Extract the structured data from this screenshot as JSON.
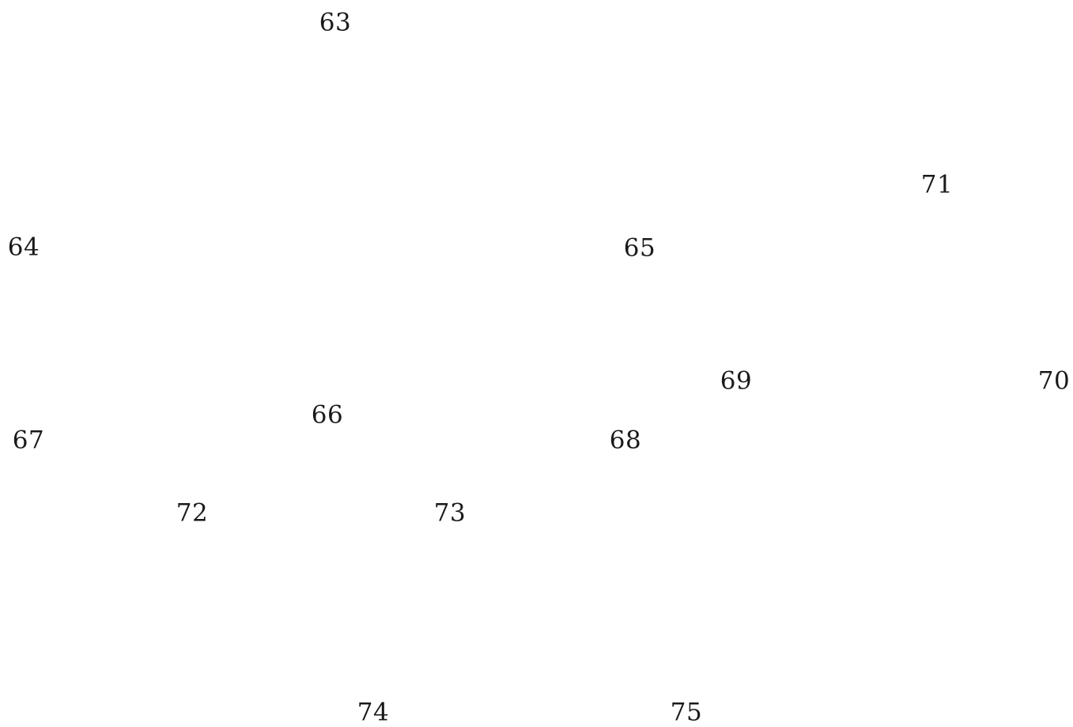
{
  "labels": [
    {
      "text": "63"
    },
    {
      "text": "64"
    },
    {
      "text": "65"
    },
    {
      "text": "66"
    },
    {
      "text": "67"
    },
    {
      "text": "68"
    },
    {
      "text": "69"
    },
    {
      "text": "70"
    },
    {
      "text": "71"
    },
    {
      "text": "72"
    },
    {
      "text": "73"
    },
    {
      "text": "74"
    },
    {
      "text": "75"
    }
  ]
}
